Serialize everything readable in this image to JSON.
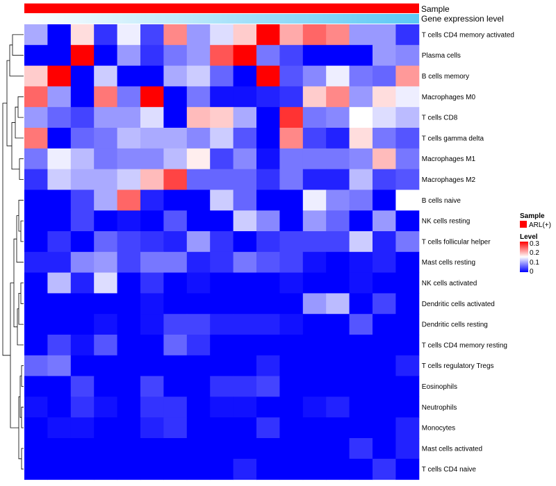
{
  "chart_data": {
    "type": "heatmap",
    "title": "",
    "annotation_tracks": [
      {
        "label": "Sample",
        "color": "#ff0000"
      },
      {
        "label": "Gene expression level",
        "color": "#5bc8f5",
        "gradient_start": "#ffffff"
      }
    ],
    "rows": [
      "T cells CD4 memory activated",
      "Plasma cells",
      "B cells memory",
      "Macrophages M0",
      "T cells CD8",
      "T cells gamma delta",
      "Macrophages M1",
      "Macrophages M2",
      "B cells naive",
      "NK cells resting",
      "T cells follicular helper",
      "Mast cells resting",
      "NK cells activated",
      "Dendritic cells activated",
      "Dendritic cells resting",
      "T cells CD4 memory resting",
      "T cells regulatory  Tregs",
      "Eosinophils",
      "Neutrophils",
      "Monocytes",
      "Mast cells activated",
      "T cells CD4 naive"
    ],
    "values": [
      [
        0.1,
        0.0,
        0.17,
        0.03,
        0.14,
        0.04,
        0.22,
        0.09,
        0.13,
        0.18,
        0.3,
        0.2,
        0.24,
        0.22,
        0.09,
        0.09,
        0.03
      ],
      [
        0.0,
        0.0,
        0.3,
        0.0,
        0.09,
        0.03,
        0.07,
        0.09,
        0.25,
        0.3,
        0.07,
        0.04,
        0.0,
        0.0,
        0.0,
        0.09,
        0.08
      ],
      [
        0.18,
        0.3,
        0.0,
        0.12,
        0.0,
        0.0,
        0.1,
        0.12,
        0.06,
        0.0,
        0.3,
        0.05,
        0.08,
        0.14,
        0.07,
        0.06,
        0.21
      ],
      [
        0.24,
        0.09,
        0.0,
        0.23,
        0.07,
        0.3,
        0.0,
        0.07,
        0.01,
        0.01,
        0.02,
        0.03,
        0.18,
        0.22,
        0.09,
        0.17,
        0.14
      ],
      [
        0.09,
        0.06,
        0.04,
        0.09,
        0.09,
        0.13,
        0.0,
        0.19,
        0.18,
        0.1,
        0.0,
        0.27,
        0.07,
        0.08,
        0.15,
        0.13,
        0.11
      ],
      [
        0.23,
        0.0,
        0.06,
        0.07,
        0.11,
        0.1,
        0.1,
        0.08,
        0.12,
        0.05,
        0.0,
        0.22,
        0.04,
        0.02,
        0.17,
        0.07,
        0.05
      ],
      [
        0.07,
        0.14,
        0.11,
        0.07,
        0.08,
        0.08,
        0.11,
        0.16,
        0.04,
        0.08,
        0.01,
        0.07,
        0.07,
        0.07,
        0.08,
        0.19,
        0.07
      ],
      [
        0.03,
        0.12,
        0.1,
        0.1,
        0.12,
        0.19,
        0.26,
        0.06,
        0.06,
        0.06,
        0.03,
        0.07,
        0.02,
        0.02,
        0.11,
        0.04,
        0.05
      ],
      [
        0.0,
        0.0,
        0.04,
        0.1,
        0.24,
        0.02,
        0.0,
        0.0,
        0.12,
        0.06,
        0.0,
        0.0,
        0.14,
        0.08,
        0.07,
        0.0,
        0.15
      ],
      [
        0.0,
        0.0,
        0.04,
        0.0,
        0.01,
        0.0,
        0.05,
        0.0,
        0.0,
        0.12,
        0.08,
        0.0,
        0.09,
        0.06,
        0.0,
        0.09,
        0.0
      ],
      [
        0.0,
        0.03,
        0.0,
        0.06,
        0.04,
        0.03,
        0.02,
        0.09,
        0.03,
        0.0,
        0.03,
        0.04,
        0.04,
        0.04,
        0.12,
        0.02,
        0.07
      ],
      [
        0.02,
        0.02,
        0.08,
        0.09,
        0.04,
        0.07,
        0.07,
        0.02,
        0.03,
        0.07,
        0.05,
        0.04,
        0.01,
        0.0,
        0.01,
        0.02,
        0.0
      ],
      [
        0.0,
        0.11,
        0.02,
        0.13,
        0.0,
        0.03,
        0.0,
        0.01,
        0.0,
        0.0,
        0.0,
        0.01,
        0.0,
        0.0,
        0.01,
        0.0,
        0.0
      ],
      [
        0.0,
        0.0,
        0.0,
        0.0,
        0.0,
        0.01,
        0.0,
        0.0,
        0.0,
        0.0,
        0.0,
        0.0,
        0.09,
        0.11,
        0.0,
        0.04,
        0.0
      ],
      [
        0.0,
        0.0,
        0.0,
        0.01,
        0.0,
        0.01,
        0.04,
        0.04,
        0.02,
        0.02,
        0.02,
        0.01,
        0.0,
        0.0,
        0.05,
        0.0,
        0.0
      ],
      [
        0.0,
        0.04,
        0.01,
        0.05,
        0.0,
        0.0,
        0.06,
        0.03,
        0.0,
        0.0,
        0.0,
        0.0,
        0.0,
        0.0,
        0.0,
        0.0,
        0.0
      ],
      [
        0.06,
        0.07,
        0.0,
        0.0,
        0.0,
        0.0,
        0.0,
        0.0,
        0.0,
        0.0,
        0.02,
        0.0,
        0.0,
        0.0,
        0.0,
        0.0,
        0.02
      ],
      [
        0.0,
        0.0,
        0.04,
        0.0,
        0.0,
        0.04,
        0.0,
        0.0,
        0.03,
        0.03,
        0.04,
        0.0,
        0.0,
        0.0,
        0.0,
        0.0,
        0.0
      ],
      [
        0.01,
        0.0,
        0.03,
        0.01,
        0.0,
        0.03,
        0.03,
        0.0,
        0.01,
        0.01,
        0.0,
        0.0,
        0.01,
        0.02,
        0.0,
        0.0,
        0.0
      ],
      [
        0.0,
        0.01,
        0.01,
        0.0,
        0.0,
        0.02,
        0.03,
        0.0,
        0.0,
        0.0,
        0.03,
        0.0,
        0.0,
        0.0,
        0.0,
        0.0,
        0.02
      ],
      [
        0.0,
        0.0,
        0.0,
        0.0,
        0.0,
        0.0,
        0.0,
        0.0,
        0.0,
        0.0,
        0.0,
        0.0,
        0.0,
        0.0,
        0.03,
        0.0,
        0.02
      ],
      [
        0.0,
        0.0,
        0.0,
        0.0,
        0.0,
        0.0,
        0.0,
        0.0,
        0.0,
        0.02,
        0.0,
        0.0,
        0.0,
        0.0,
        0.0,
        0.03,
        0.0
      ]
    ],
    "n_columns": 17,
    "color_scale": {
      "min": 0,
      "mid": 0.15,
      "max": 0.3,
      "low": "#0000ff",
      "middle": "#ffffff",
      "high": "#ff0000"
    },
    "legend": {
      "sample_title": "Sample",
      "sample_entry": "ARL(+)",
      "sample_color": "#ff0000",
      "level_title": "Level",
      "level_ticks": [
        "0.3",
        "0.2",
        "0.1",
        "0"
      ],
      "placement": "right"
    },
    "row_dendrogram": true
  }
}
